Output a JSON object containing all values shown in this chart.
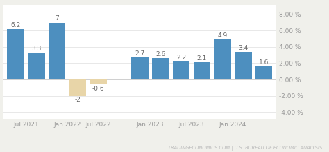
{
  "x_positions": [
    0,
    1,
    2,
    3,
    4,
    6,
    7,
    8,
    9,
    10,
    11,
    12
  ],
  "values": [
    6.2,
    3.3,
    7.0,
    -2.0,
    -0.6,
    2.7,
    2.6,
    2.2,
    2.1,
    4.9,
    3.4,
    1.6
  ],
  "labels": [
    "6.2",
    "3.3",
    "7",
    "-2",
    "-0.6",
    "2.7",
    "2.6",
    "2.2",
    "2.1",
    "4.9",
    "3.4",
    "1.6"
  ],
  "colors": [
    "#4d8fbf",
    "#4d8fbf",
    "#4d8fbf",
    "#e8d5a8",
    "#e8d5a8",
    "#4d8fbf",
    "#4d8fbf",
    "#4d8fbf",
    "#4d8fbf",
    "#4d8fbf",
    "#4d8fbf",
    "#4d8fbf"
  ],
  "xtick_positions": [
    0.5,
    2.5,
    4.0,
    6.5,
    8.5,
    10.5
  ],
  "xtick_labels": [
    "Jul 2021",
    "Jan 2022",
    "Jul 2022",
    "Jan 2023",
    "Jul 2023",
    "Jan 2024"
  ],
  "ytick_labels": [
    "-4.00 %",
    "-2.00 %",
    "0.00 %",
    "2.00 %",
    "4.00 %",
    "6.00 %",
    "8.00 %"
  ],
  "ytick_values": [
    -4,
    -2,
    0,
    2,
    4,
    6,
    8
  ],
  "ylim": [
    -4.8,
    9.2
  ],
  "xlim": [
    -0.6,
    12.6
  ],
  "plot_bg": "#ffffff",
  "outer_bg": "#f0f0eb",
  "bar_width": 0.82,
  "watermark": "TRADINGECONOMICS.COM | U.S. BUREAU OF ECONOMIC ANALYSIS",
  "label_fontsize": 6.5,
  "tick_fontsize": 6.5,
  "watermark_fontsize": 4.8,
  "grid_color": "#e8e8e8",
  "label_color": "#666666",
  "tick_color": "#999999"
}
